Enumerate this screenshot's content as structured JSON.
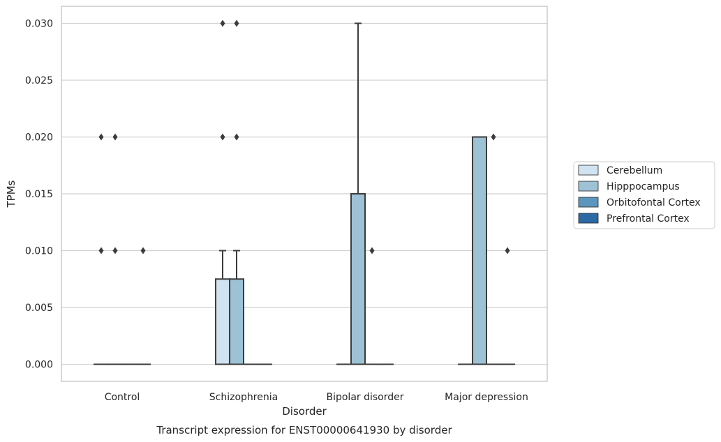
{
  "chart_data": {
    "type": "box",
    "xlabel": "Disorder",
    "ylabel": "TPMs",
    "caption": "Transcript expression for ENST00000641930 by disorder",
    "ylim": [
      -0.0015,
      0.0315
    ],
    "yticks": [
      "0.000",
      "0.005",
      "0.010",
      "0.015",
      "0.020",
      "0.025",
      "0.030"
    ],
    "ytick_values": [
      0,
      0.005,
      0.01,
      0.015,
      0.02,
      0.025,
      0.03
    ],
    "grid": true,
    "legend_placement": "right",
    "categories": [
      "Control",
      "Schizophrenia",
      "Bipolar disorder",
      "Major depression"
    ],
    "series": [
      {
        "name": "Cerebellum",
        "color": "#d1e2f0",
        "boxes": [
          {
            "q1": 0,
            "median": 0,
            "q3": 0,
            "whisker_low": 0,
            "whisker_high": 0,
            "outliers": [
              0.01,
              0.02
            ]
          },
          {
            "q1": 0,
            "median": 0,
            "q3": 0.0075,
            "whisker_low": 0,
            "whisker_high": 0.01,
            "outliers": [
              0.02,
              0.03
            ]
          },
          {
            "q1": 0,
            "median": 0,
            "q3": 0,
            "whisker_low": 0,
            "whisker_high": 0,
            "outliers": []
          },
          {
            "q1": 0,
            "median": 0,
            "q3": 0,
            "whisker_low": 0,
            "whisker_high": 0,
            "outliers": []
          }
        ]
      },
      {
        "name": "Hipppocampus",
        "color": "#9dc2d6",
        "boxes": [
          {
            "q1": 0,
            "median": 0,
            "q3": 0,
            "whisker_low": 0,
            "whisker_high": 0,
            "outliers": [
              0.01,
              0.02
            ]
          },
          {
            "q1": 0,
            "median": 0,
            "q3": 0.0075,
            "whisker_low": 0,
            "whisker_high": 0.01,
            "outliers": [
              0.02,
              0.03
            ]
          },
          {
            "q1": 0,
            "median": 0,
            "q3": 0.015,
            "whisker_low": 0,
            "whisker_high": 0.03,
            "outliers": []
          },
          {
            "q1": 0,
            "median": 0,
            "q3": 0.02,
            "whisker_low": 0,
            "whisker_high": 0.02,
            "outliers": []
          }
        ]
      },
      {
        "name": "Orbitofontal Cortex",
        "color": "#5b96bf",
        "boxes": [
          {
            "q1": 0,
            "median": 0,
            "q3": 0,
            "whisker_low": 0,
            "whisker_high": 0,
            "outliers": []
          },
          {
            "q1": 0,
            "median": 0,
            "q3": 0,
            "whisker_low": 0,
            "whisker_high": 0,
            "outliers": []
          },
          {
            "q1": 0,
            "median": 0,
            "q3": 0,
            "whisker_low": 0,
            "whisker_high": 0,
            "outliers": [
              0.01
            ]
          },
          {
            "q1": 0,
            "median": 0,
            "q3": 0,
            "whisker_low": 0,
            "whisker_high": 0,
            "outliers": [
              0.02
            ]
          }
        ]
      },
      {
        "name": "Prefrontal Cortex",
        "color": "#2d6aa5",
        "boxes": [
          {
            "q1": 0,
            "median": 0,
            "q3": 0,
            "whisker_low": 0,
            "whisker_high": 0,
            "outliers": [
              0.01
            ]
          },
          {
            "q1": 0,
            "median": 0,
            "q3": 0,
            "whisker_low": 0,
            "whisker_high": 0,
            "outliers": []
          },
          {
            "q1": 0,
            "median": 0,
            "q3": 0,
            "whisker_low": 0,
            "whisker_high": 0,
            "outliers": []
          },
          {
            "q1": 0,
            "median": 0,
            "q3": 0,
            "whisker_low": 0,
            "whisker_high": 0,
            "outliers": [
              0.01
            ]
          }
        ]
      }
    ]
  }
}
